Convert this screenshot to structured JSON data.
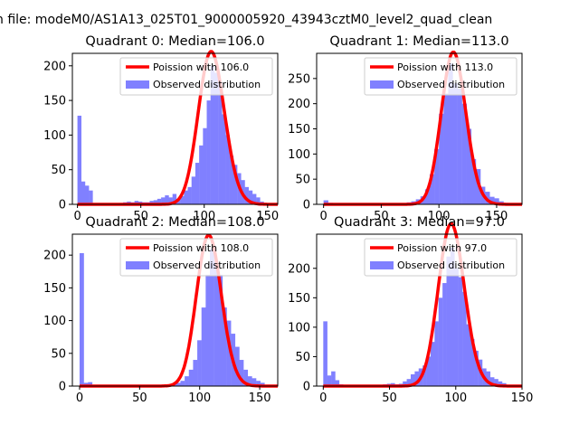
{
  "figure": {
    "suptitle": "n file: modeM0/AS1A13_025T01_9000005920_43943cztM0_level2_quad_clean"
  },
  "colors": {
    "fit": "#ff0000",
    "hist": "#8080ff",
    "axis": "#000000"
  },
  "chart_data": [
    {
      "type": "bar",
      "title": "Quadrant 0: Median=106.0",
      "xlim": [
        -4,
        158
      ],
      "ylim": [
        0,
        218
      ],
      "xticks": [
        0,
        50,
        100,
        150
      ],
      "yticks": [
        0,
        50,
        100,
        150,
        200
      ],
      "bin_width": 3,
      "legend": [
        "Poission with 106.0",
        "Observed distribution"
      ],
      "fit_mean": 106.0,
      "bins": [
        [
          0,
          128
        ],
        [
          3,
          33
        ],
        [
          6,
          27
        ],
        [
          9,
          20
        ],
        [
          12,
          2
        ],
        [
          15,
          2
        ],
        [
          18,
          2
        ],
        [
          21,
          1
        ],
        [
          24,
          1
        ],
        [
          27,
          1
        ],
        [
          30,
          1
        ],
        [
          33,
          2
        ],
        [
          36,
          3
        ],
        [
          39,
          4
        ],
        [
          42,
          3
        ],
        [
          45,
          5
        ],
        [
          48,
          4
        ],
        [
          51,
          3
        ],
        [
          54,
          3
        ],
        [
          57,
          5
        ],
        [
          60,
          6
        ],
        [
          63,
          8
        ],
        [
          66,
          10
        ],
        [
          69,
          13
        ],
        [
          72,
          10
        ],
        [
          75,
          15
        ],
        [
          78,
          8
        ],
        [
          81,
          12
        ],
        [
          84,
          20
        ],
        [
          87,
          25
        ],
        [
          90,
          40
        ],
        [
          93,
          60
        ],
        [
          96,
          85
        ],
        [
          99,
          110
        ],
        [
          102,
          150
        ],
        [
          105,
          200
        ],
        [
          108,
          190
        ],
        [
          111,
          175
        ],
        [
          114,
          130
        ],
        [
          117,
          100
        ],
        [
          120,
          70
        ],
        [
          123,
          57
        ],
        [
          126,
          45
        ],
        [
          129,
          35
        ],
        [
          132,
          25
        ],
        [
          135,
          20
        ],
        [
          138,
          15
        ],
        [
          141,
          10
        ],
        [
          144,
          4
        ],
        [
          147,
          1
        ]
      ]
    },
    {
      "type": "bar",
      "title": "Quadrant 1: Median=113.0",
      "xlim": [
        -6,
        172
      ],
      "ylim": [
        0,
        300
      ],
      "xticks": [
        0,
        50,
        100,
        150
      ],
      "yticks": [
        0,
        50,
        100,
        150,
        200,
        250
      ],
      "bin_width": 4,
      "legend": [
        "Poission with 113.0",
        "Observed distribution"
      ],
      "fit_mean": 113.0,
      "bins": [
        [
          0,
          8
        ],
        [
          4,
          3
        ],
        [
          8,
          1
        ],
        [
          12,
          1
        ],
        [
          20,
          1
        ],
        [
          36,
          1
        ],
        [
          48,
          1
        ],
        [
          56,
          1
        ],
        [
          64,
          2
        ],
        [
          68,
          2
        ],
        [
          72,
          4
        ],
        [
          76,
          6
        ],
        [
          80,
          10
        ],
        [
          84,
          16
        ],
        [
          88,
          30
        ],
        [
          92,
          60
        ],
        [
          96,
          110
        ],
        [
          100,
          180
        ],
        [
          104,
          220
        ],
        [
          108,
          280
        ],
        [
          112,
          240
        ],
        [
          116,
          230
        ],
        [
          120,
          200
        ],
        [
          124,
          150
        ],
        [
          128,
          90
        ],
        [
          132,
          70
        ],
        [
          136,
          35
        ],
        [
          140,
          25
        ],
        [
          144,
          15
        ],
        [
          148,
          12
        ],
        [
          152,
          6
        ],
        [
          156,
          3
        ],
        [
          160,
          2
        ],
        [
          164,
          1
        ]
      ]
    },
    {
      "type": "bar",
      "title": "Quadrant 2: Median=108.0",
      "xlim": [
        -6,
        165
      ],
      "ylim": [
        0,
        232
      ],
      "xticks": [
        0,
        50,
        100,
        150
      ],
      "yticks": [
        0,
        50,
        100,
        150,
        200
      ],
      "bin_width": 3.5,
      "legend": [
        "Poission with 108.0",
        "Observed distribution"
      ],
      "fit_mean": 108.0,
      "bins": [
        [
          0,
          203
        ],
        [
          3.5,
          5
        ],
        [
          7,
          6
        ],
        [
          10.5,
          1
        ],
        [
          14,
          1
        ],
        [
          42,
          1
        ],
        [
          56,
          1
        ],
        [
          66.5,
          1
        ],
        [
          70,
          2
        ],
        [
          73.5,
          2
        ],
        [
          77,
          3
        ],
        [
          80.5,
          5
        ],
        [
          84,
          8
        ],
        [
          87.5,
          15
        ],
        [
          91,
          25
        ],
        [
          94.5,
          40
        ],
        [
          98,
          70
        ],
        [
          101.5,
          120
        ],
        [
          105,
          170
        ],
        [
          108.5,
          210
        ],
        [
          112,
          190
        ],
        [
          115.5,
          170
        ],
        [
          119,
          120
        ],
        [
          122.5,
          100
        ],
        [
          126,
          80
        ],
        [
          129.5,
          60
        ],
        [
          133,
          40
        ],
        [
          136.5,
          25
        ],
        [
          140,
          15
        ],
        [
          143.5,
          12
        ],
        [
          147,
          8
        ],
        [
          150.5,
          5
        ],
        [
          154,
          2
        ]
      ]
    },
    {
      "type": "bar",
      "title": "Quadrant 3: Median=97.0",
      "xlim": [
        -5,
        150
      ],
      "ylim": [
        0,
        258
      ],
      "xticks": [
        0,
        50,
        100,
        150
      ],
      "yticks": [
        0,
        50,
        100,
        150,
        200
      ],
      "bin_width": 3,
      "legend": [
        "Poission with 97.0",
        "Observed distribution"
      ],
      "fit_mean": 97.0,
      "bins": [
        [
          0,
          110
        ],
        [
          3,
          18
        ],
        [
          6,
          25
        ],
        [
          9,
          10
        ],
        [
          12,
          3
        ],
        [
          15,
          2
        ],
        [
          18,
          1
        ],
        [
          24,
          1
        ],
        [
          30,
          1
        ],
        [
          36,
          1
        ],
        [
          42,
          2
        ],
        [
          45,
          3
        ],
        [
          48,
          4
        ],
        [
          51,
          5
        ],
        [
          54,
          3
        ],
        [
          57,
          4
        ],
        [
          60,
          8
        ],
        [
          63,
          12
        ],
        [
          66,
          20
        ],
        [
          69,
          25
        ],
        [
          72,
          30
        ],
        [
          75,
          35
        ],
        [
          78,
          50
        ],
        [
          81,
          75
        ],
        [
          84,
          110
        ],
        [
          87,
          150
        ],
        [
          90,
          175
        ],
        [
          93,
          220
        ],
        [
          96,
          235
        ],
        [
          99,
          200
        ],
        [
          102,
          185
        ],
        [
          105,
          160
        ],
        [
          108,
          105
        ],
        [
          111,
          80
        ],
        [
          114,
          60
        ],
        [
          117,
          45
        ],
        [
          120,
          30
        ],
        [
          123,
          25
        ],
        [
          126,
          15
        ],
        [
          129,
          12
        ],
        [
          132,
          8
        ],
        [
          135,
          5
        ],
        [
          138,
          2
        ],
        [
          141,
          1
        ]
      ]
    }
  ]
}
